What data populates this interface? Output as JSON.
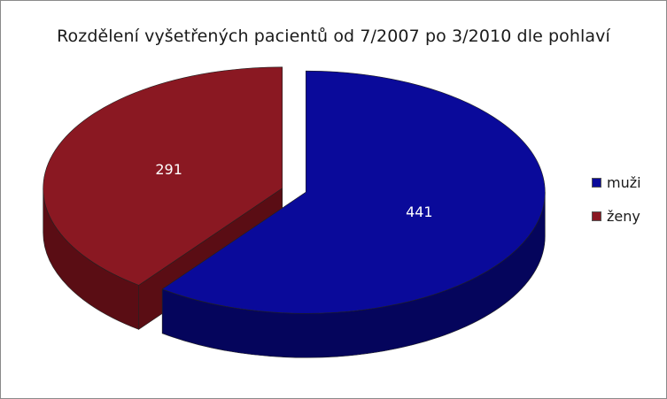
{
  "chart_data": {
    "type": "pie",
    "title": "Rozdělení vyšetřených pacientů od 7/2007 po 3/2010 dle pohlaví",
    "slices": [
      {
        "name": "muži",
        "value": 441,
        "color": "#0a0a9a",
        "side_color": "#05055c"
      },
      {
        "name": "ženy",
        "value": 291,
        "color": "#8a1822",
        "side_color": "#5a0d14"
      }
    ],
    "legend_position": "right",
    "exploded": true,
    "three_d": true
  }
}
